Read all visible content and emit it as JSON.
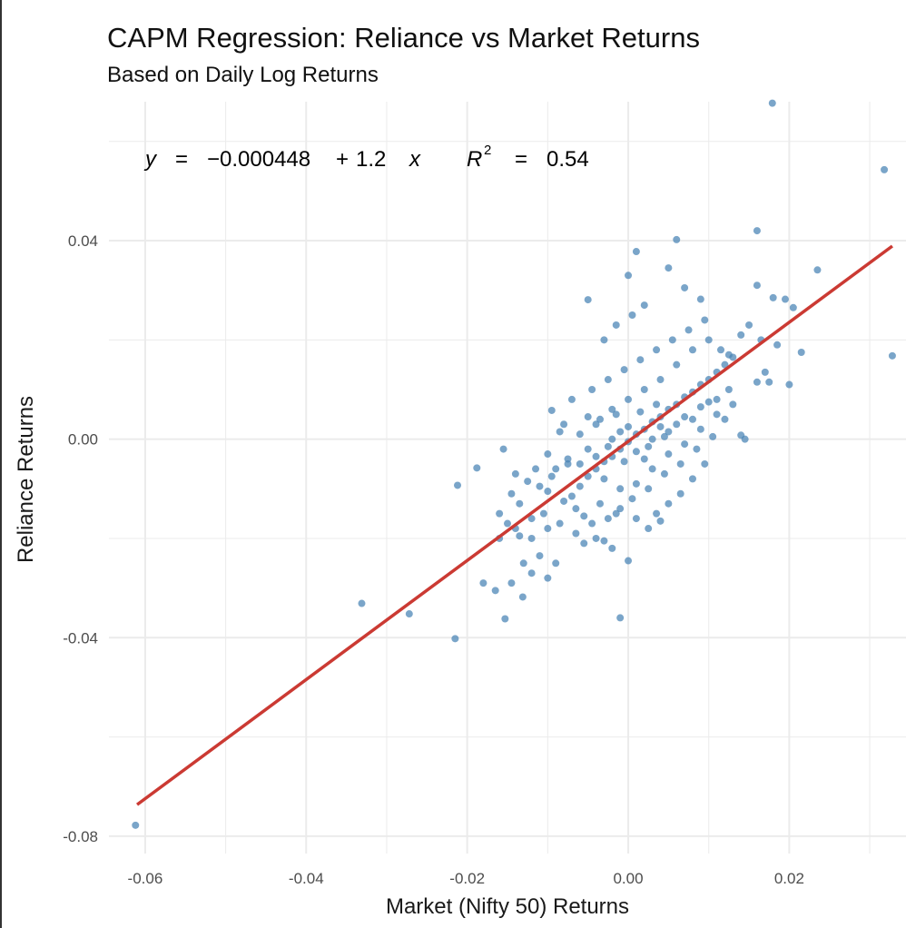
{
  "chart_data": {
    "type": "scatter",
    "title": "CAPM Regression: Reliance vs Market Returns",
    "subtitle": "Based on Daily Log Returns",
    "xlabel": "Market (Nifty 50) Returns",
    "ylabel": "Reliance Returns",
    "xlim": [
      -0.0645,
      0.0345
    ],
    "ylim": [
      -0.0835,
      0.068
    ],
    "x_ticks": [
      -0.06,
      -0.04,
      -0.02,
      0.0,
      0.02
    ],
    "x_tick_labels": [
      "-0.06",
      "-0.04",
      "-0.02",
      "0.00",
      "0.02"
    ],
    "y_ticks": [
      -0.08,
      -0.04,
      0.0,
      0.04
    ],
    "y_tick_labels": [
      "-0.08",
      "-0.04",
      "0.00",
      "0.04"
    ],
    "grid": true,
    "annotation": {
      "y_sym": "y",
      "eq_sign": "=",
      "intercept": "−0.000448",
      "plus": "+",
      "slope": "1.2",
      "x_sym": "x",
      "r_sym": "R",
      "r_exp": "2",
      "r2_eq": "=",
      "r2": "0.54"
    },
    "regression_line": {
      "intercept": -0.000448,
      "slope": 1.2,
      "x_range": [
        -0.061,
        0.0328
      ]
    },
    "colors": {
      "points": "#4682B4",
      "line": "#CB3A33",
      "grid": "#EBEBEB"
    },
    "points": [
      [
        -0.0612,
        -0.0778
      ],
      [
        -0.0331,
        -0.0331
      ],
      [
        -0.0272,
        -0.0352
      ],
      [
        -0.0215,
        -0.0402
      ],
      [
        -0.0212,
        -0.0093
      ],
      [
        -0.0188,
        -0.0058
      ],
      [
        -0.0153,
        -0.0362
      ],
      [
        -0.0131,
        -0.0318
      ],
      [
        -0.001,
        -0.036
      ],
      [
        0.0179,
        0.0677
      ],
      [
        0.0318,
        0.0543
      ],
      [
        0.0328,
        0.0168
      ],
      [
        0.016,
        0.042
      ],
      [
        0.006,
        0.0402
      ],
      [
        0.001,
        0.0378
      ],
      [
        0.0235,
        0.0341
      ],
      [
        -0.005,
        0.0281
      ],
      [
        0.005,
        0.0345
      ],
      [
        0.0,
        0.033
      ],
      [
        0.007,
        0.0305
      ],
      [
        0.018,
        0.0285
      ],
      [
        0.0195,
        0.0282
      ],
      [
        0.016,
        0.031
      ],
      [
        0.0205,
        0.0265
      ],
      [
        0.009,
        0.0282
      ],
      [
        0.0215,
        0.0175
      ],
      [
        0.0185,
        0.019
      ],
      [
        0.017,
        0.0135
      ],
      [
        0.02,
        0.011
      ],
      [
        0.016,
        0.0115
      ],
      [
        0.0175,
        0.0115
      ],
      [
        0.014,
        0.0008
      ],
      [
        0.0145,
        0.0
      ],
      [
        -0.0155,
        -0.002
      ],
      [
        -0.0095,
        0.0058
      ],
      [
        -0.0085,
        0.0015
      ],
      [
        -0.0075,
        -0.005
      ],
      [
        -0.014,
        -0.018
      ],
      [
        -0.016,
        -0.02
      ],
      [
        -0.013,
        -0.025
      ],
      [
        -0.012,
        -0.027
      ],
      [
        -0.0145,
        -0.029
      ],
      [
        -0.018,
        -0.029
      ],
      [
        -0.0165,
        -0.0305
      ],
      [
        -0.011,
        -0.0235
      ],
      [
        -0.01,
        -0.028
      ],
      [
        -0.0055,
        -0.021
      ],
      [
        -0.0065,
        -0.019
      ],
      [
        -0.004,
        -0.02
      ],
      [
        -0.003,
        -0.0205
      ],
      [
        -0.002,
        -0.022
      ],
      [
        0.0,
        -0.0245
      ],
      [
        -0.009,
        -0.025
      ],
      [
        -0.0085,
        -0.017
      ],
      [
        -0.0105,
        -0.015
      ],
      [
        -0.012,
        -0.016
      ],
      [
        -0.0135,
        -0.013
      ],
      [
        -0.0145,
        -0.011
      ],
      [
        -0.01,
        -0.0105
      ],
      [
        -0.011,
        -0.0095
      ],
      [
        -0.008,
        -0.0125
      ],
      [
        -0.007,
        -0.0115
      ],
      [
        -0.006,
        -0.0095
      ],
      [
        -0.005,
        -0.0075
      ],
      [
        -0.004,
        -0.006
      ],
      [
        -0.003,
        -0.0045
      ],
      [
        -0.002,
        -0.0035
      ],
      [
        -0.001,
        -0.002
      ],
      [
        0.0,
        -0.0005
      ],
      [
        0.001,
        0.001
      ],
      [
        0.002,
        0.002
      ],
      [
        0.003,
        0.0035
      ],
      [
        0.004,
        0.0045
      ],
      [
        0.005,
        0.006
      ],
      [
        0.006,
        0.007
      ],
      [
        0.007,
        0.0085
      ],
      [
        0.008,
        0.0095
      ],
      [
        0.009,
        0.011
      ],
      [
        0.01,
        0.012
      ],
      [
        0.011,
        0.0135
      ],
      [
        0.012,
        0.015
      ],
      [
        0.013,
        0.0165
      ],
      [
        -0.006,
        0.001
      ],
      [
        -0.005,
        -0.002
      ],
      [
        -0.004,
        0.003
      ],
      [
        -0.003,
        -0.008
      ],
      [
        -0.002,
        0.006
      ],
      [
        -0.001,
        -0.01
      ],
      [
        0.0,
        0.008
      ],
      [
        0.001,
        -0.009
      ],
      [
        0.002,
        0.01
      ],
      [
        0.003,
        -0.006
      ],
      [
        0.004,
        0.012
      ],
      [
        0.005,
        -0.003
      ],
      [
        0.006,
        0.015
      ],
      [
        0.007,
        -0.001
      ],
      [
        0.008,
        0.018
      ],
      [
        0.009,
        0.002
      ],
      [
        0.01,
        0.02
      ],
      [
        0.011,
        0.005
      ],
      [
        -0.007,
        0.008
      ],
      [
        -0.0065,
        -0.014
      ],
      [
        -0.0045,
        0.01
      ],
      [
        -0.0035,
        -0.013
      ],
      [
        -0.0025,
        0.012
      ],
      [
        -0.0015,
        -0.015
      ],
      [
        -0.0005,
        0.014
      ],
      [
        0.0005,
        -0.012
      ],
      [
        0.0015,
        0.016
      ],
      [
        0.0025,
        -0.01
      ],
      [
        0.0035,
        0.018
      ],
      [
        0.0045,
        -0.007
      ],
      [
        0.0055,
        0.02
      ],
      [
        0.0065,
        -0.005
      ],
      [
        0.0075,
        0.022
      ],
      [
        0.0085,
        -0.002
      ],
      [
        0.0095,
        0.024
      ],
      [
        0.0105,
        0.0005
      ],
      [
        0.0115,
        0.018
      ],
      [
        0.0125,
        0.01
      ],
      [
        -0.003,
        0.02
      ],
      [
        -0.0015,
        0.023
      ],
      [
        0.0005,
        0.025
      ],
      [
        0.002,
        0.027
      ],
      [
        -0.008,
        0.003
      ],
      [
        -0.009,
        -0.006
      ],
      [
        -0.01,
        -0.003
      ],
      [
        -0.0075,
        -0.004
      ],
      [
        0.0035,
        -0.015
      ],
      [
        0.005,
        -0.013
      ],
      [
        0.0065,
        -0.011
      ],
      [
        0.008,
        -0.008
      ],
      [
        0.0095,
        -0.005
      ],
      [
        0.011,
        0.008
      ],
      [
        0.012,
        0.004
      ],
      [
        0.013,
        0.007
      ],
      [
        -0.0055,
        -0.0155
      ],
      [
        -0.0045,
        -0.017
      ],
      [
        -0.0025,
        -0.016
      ],
      [
        -0.001,
        -0.014
      ],
      [
        0.001,
        -0.016
      ],
      [
        0.0025,
        -0.018
      ],
      [
        0.004,
        -0.0165
      ],
      [
        -0.014,
        -0.007
      ],
      [
        -0.0125,
        -0.0085
      ],
      [
        -0.0115,
        -0.006
      ],
      [
        -0.0095,
        -0.0075
      ],
      [
        -0.016,
        -0.015
      ],
      [
        -0.015,
        -0.017
      ],
      [
        -0.0135,
        -0.0195
      ],
      [
        -0.012,
        -0.02
      ],
      [
        -0.01,
        -0.018
      ],
      [
        0.015,
        0.023
      ],
      [
        0.014,
        0.021
      ],
      [
        0.0165,
        0.02
      ],
      [
        0.0125,
        0.017
      ],
      [
        -0.002,
        0.0
      ],
      [
        -0.001,
        0.0015
      ],
      [
        0.0,
        0.0025
      ],
      [
        0.001,
        -0.0025
      ],
      [
        0.002,
        -0.004
      ],
      [
        0.003,
        0.0
      ],
      [
        0.004,
        0.0025
      ],
      [
        0.005,
        0.0015
      ],
      [
        -0.0035,
        0.004
      ],
      [
        -0.0025,
        -0.0015
      ],
      [
        -0.0015,
        0.005
      ],
      [
        -0.0005,
        -0.0045
      ],
      [
        0.0015,
        0.0055
      ],
      [
        0.0025,
        -0.0015
      ],
      [
        0.0035,
        0.007
      ],
      [
        0.0045,
        0.0005
      ],
      [
        -0.006,
        -0.005
      ],
      [
        -0.005,
        0.0045
      ],
      [
        -0.004,
        -0.0035
      ],
      [
        0.006,
        0.003
      ],
      [
        0.007,
        0.0045
      ],
      [
        0.008,
        0.004
      ],
      [
        0.009,
        0.0065
      ],
      [
        0.01,
        0.0075
      ]
    ]
  }
}
